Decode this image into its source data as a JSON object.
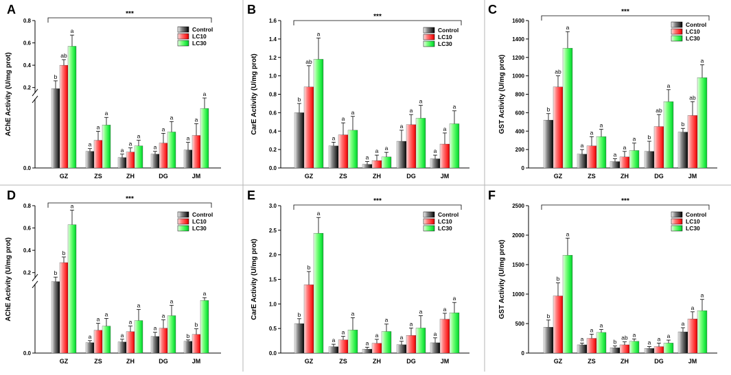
{
  "colors": {
    "control": "#3a3a3a",
    "lc10": "#ff2a2a",
    "lc30": "#22ee44",
    "divider": "#b5b5b5"
  },
  "legend_labels": [
    "Control",
    "LC10",
    "LC30"
  ],
  "chart_data": [
    {
      "panel": "A",
      "type": "bar",
      "broken_axis": true,
      "categories": [
        "GZ",
        "ZS",
        "ZH",
        "DG",
        "JM"
      ],
      "ylabel": "AChE Activity (U/mg prot)",
      "ytick_labels": [
        "0.0",
        "0.2",
        "0.4",
        "0.6",
        "0.8"
      ],
      "significance": "***",
      "series": [
        {
          "name": "Control",
          "values": [
            0.19,
            0.024,
            0.015,
            0.02,
            0.026
          ],
          "errors": [
            0.07,
            0.004,
            0.005,
            0.004,
            0.011
          ],
          "letters": [
            "b",
            "a",
            "a",
            "a",
            "a"
          ]
        },
        {
          "name": "LC10",
          "values": [
            0.4,
            0.04,
            0.023,
            0.036,
            0.047
          ],
          "errors": [
            0.05,
            0.013,
            0.006,
            0.014,
            0.017
          ],
          "letters": [
            "ab",
            "a",
            "a",
            "a",
            "a"
          ]
        },
        {
          "name": "LC30",
          "values": [
            0.57,
            0.062,
            0.032,
            0.052,
            0.086
          ],
          "errors": [
            0.1,
            0.011,
            0.008,
            0.015,
            0.02
          ],
          "letters": [
            "a",
            "a",
            "a",
            "a",
            "a"
          ]
        }
      ]
    },
    {
      "panel": "B",
      "type": "bar",
      "broken_axis": false,
      "categories": [
        "GZ",
        "ZS",
        "ZH",
        "DG",
        "JM"
      ],
      "ylabel": "CarE Activity (U/mg prot)",
      "ylim": [
        0,
        1.6
      ],
      "ytick_labels": [
        "0.0",
        "0.2",
        "0.4",
        "0.6",
        "0.8",
        "1.0",
        "1.2",
        "1.4",
        "1.6"
      ],
      "significance": "***",
      "series": [
        {
          "name": "Control",
          "values": [
            0.6,
            0.24,
            0.04,
            0.29,
            0.1
          ],
          "errors": [
            0.1,
            0.04,
            0.03,
            0.12,
            0.04
          ],
          "letters": [
            "b",
            "a",
            "a",
            "a",
            "a"
          ]
        },
        {
          "name": "LC10",
          "values": [
            0.88,
            0.36,
            0.08,
            0.47,
            0.26
          ],
          "errors": [
            0.23,
            0.13,
            0.06,
            0.11,
            0.12
          ],
          "letters": [
            "ab",
            "a",
            "a",
            "a",
            "a"
          ]
        },
        {
          "name": "LC30",
          "values": [
            1.18,
            0.41,
            0.12,
            0.54,
            0.48
          ],
          "errors": [
            0.23,
            0.15,
            0.05,
            0.14,
            0.14
          ],
          "letters": [
            "a",
            "a",
            "a",
            "a",
            "a"
          ]
        }
      ]
    },
    {
      "panel": "C",
      "type": "bar",
      "broken_axis": false,
      "categories": [
        "GZ",
        "ZS",
        "ZH",
        "DG",
        "JM"
      ],
      "ylabel": "GST Activity (U/mg prot)",
      "ylim": [
        0,
        1600
      ],
      "ytick_labels": [
        "0",
        "200",
        "400",
        "600",
        "800",
        "1000",
        "1200",
        "1400",
        "1600"
      ],
      "significance": "***",
      "series": [
        {
          "name": "Control",
          "values": [
            520,
            150,
            70,
            180,
            390
          ],
          "errors": [
            70,
            50,
            30,
            110,
            40
          ],
          "letters": [
            "b",
            "a",
            "a",
            "b",
            "b"
          ]
        },
        {
          "name": "LC10",
          "values": [
            880,
            240,
            120,
            450,
            570
          ],
          "errors": [
            120,
            100,
            60,
            130,
            150
          ],
          "letters": [
            "ab",
            "a",
            "a",
            "ab",
            "ab"
          ]
        },
        {
          "name": "LC30",
          "values": [
            1300,
            340,
            190,
            720,
            980
          ],
          "errors": [
            180,
            80,
            80,
            130,
            140
          ],
          "letters": [
            "a",
            "a",
            "a",
            "a",
            "a"
          ]
        }
      ]
    },
    {
      "panel": "D",
      "type": "bar",
      "broken_axis": true,
      "categories": [
        "GZ",
        "ZS",
        "ZH",
        "DG",
        "JM"
      ],
      "ylabel": "AChE Activity (U/mg prot)",
      "ytick_labels": [
        "0.0",
        "0.2",
        "0.4",
        "0.6",
        "0.8"
      ],
      "significance": "***",
      "series": [
        {
          "name": "Control",
          "values": [
            0.12,
            0.015,
            0.016,
            0.024,
            0.017
          ],
          "errors": [
            0.04,
            0.003,
            0.004,
            0.006,
            0.002
          ],
          "letters": [
            "b",
            "a",
            "a",
            "a",
            "b"
          ]
        },
        {
          "name": "LC10",
          "values": [
            0.29,
            0.033,
            0.031,
            0.036,
            0.027
          ],
          "errors": [
            0.05,
            0.01,
            0.008,
            0.012,
            0.008
          ],
          "letters": [
            "b",
            "a",
            "a",
            "a",
            "b"
          ]
        },
        {
          "name": "LC30",
          "values": [
            0.63,
            0.039,
            0.047,
            0.054,
            0.076
          ],
          "errors": [
            0.13,
            0.011,
            0.016,
            0.015,
            0.004
          ],
          "letters": [
            "a",
            "a",
            "a",
            "a",
            "a"
          ]
        }
      ]
    },
    {
      "panel": "E",
      "type": "bar",
      "broken_axis": false,
      "categories": [
        "GZ",
        "ZS",
        "ZH",
        "DG",
        "JM"
      ],
      "ylabel": "CarE Activity (U/mg prot)",
      "ylim": [
        0,
        3.0
      ],
      "ytick_labels": [
        "0.0",
        "0.5",
        "1.0",
        "1.5",
        "2.0",
        "2.5",
        "3.0"
      ],
      "significance": "***",
      "series": [
        {
          "name": "Control",
          "values": [
            0.6,
            0.13,
            0.08,
            0.17,
            0.21
          ],
          "errors": [
            0.1,
            0.05,
            0.04,
            0.07,
            0.1
          ],
          "letters": [
            "b",
            "a",
            "a",
            "a",
            "a"
          ]
        },
        {
          "name": "LC10",
          "values": [
            1.39,
            0.27,
            0.2,
            0.36,
            0.69
          ],
          "errors": [
            0.27,
            0.07,
            0.08,
            0.15,
            0.12
          ],
          "letters": [
            "b",
            "a",
            "a",
            "a",
            "a"
          ]
        },
        {
          "name": "LC30",
          "values": [
            2.44,
            0.47,
            0.44,
            0.51,
            0.82
          ],
          "errors": [
            0.32,
            0.25,
            0.15,
            0.25,
            0.21
          ],
          "letters": [
            "a",
            "a",
            "a",
            "a",
            "a"
          ]
        }
      ]
    },
    {
      "panel": "F",
      "type": "bar",
      "broken_axis": false,
      "categories": [
        "GZ",
        "ZS",
        "ZH",
        "DG",
        "JM"
      ],
      "ylabel": "GST Activity (U/mg prot)",
      "ylim": [
        0,
        2500
      ],
      "ytick_labels": [
        "0",
        "500",
        "1000",
        "1500",
        "2000",
        "2500"
      ],
      "significance": "***",
      "series": [
        {
          "name": "Control",
          "values": [
            440,
            140,
            90,
            80,
            360
          ],
          "errors": [
            120,
            30,
            30,
            30,
            70
          ],
          "letters": [
            "b",
            "a",
            "b",
            "a",
            "a"
          ]
        },
        {
          "name": "LC10",
          "values": [
            970,
            250,
            140,
            110,
            580
          ],
          "errors": [
            220,
            70,
            50,
            60,
            120
          ],
          "letters": [
            "b",
            "a",
            "ab",
            "a",
            "a"
          ]
        },
        {
          "name": "LC30",
          "values": [
            1660,
            350,
            200,
            170,
            720
          ],
          "errors": [
            290,
            50,
            40,
            50,
            190
          ],
          "letters": [
            "a",
            "a",
            "a",
            "a",
            "a"
          ]
        }
      ]
    }
  ]
}
